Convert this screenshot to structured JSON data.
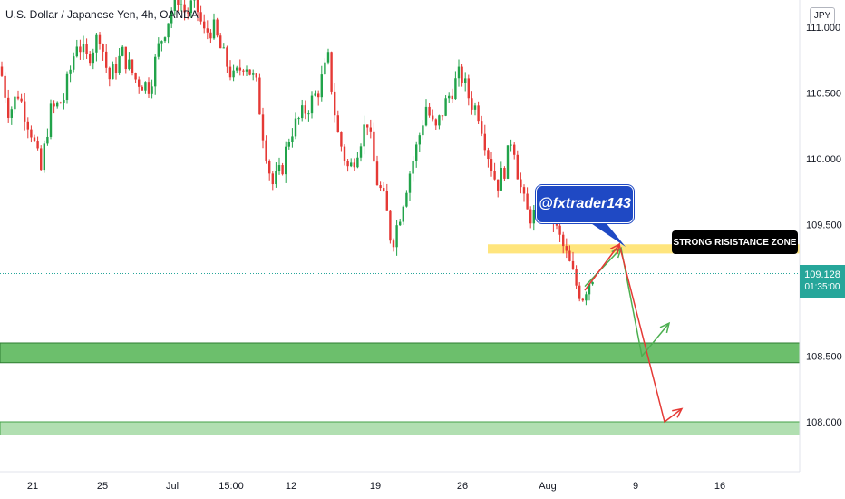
{
  "header": {
    "title": "U.S. Dollar / Japanese Yen, 4h, OANDA"
  },
  "currency_button": "JPY",
  "last_price": {
    "price": "109.128",
    "countdown": "01:35:00"
  },
  "annotations": {
    "callout": "@fxtrader143",
    "resistance_label": "STRONG RISISTANCE ZONE"
  },
  "colors": {
    "up": "#26a69a",
    "down": "#ef5350",
    "candle_up": "#21a34a",
    "candle_down": "#e53935",
    "resistance_zone": "#ffe066",
    "support_zone_1": "#5cb85c",
    "support_zone_2": "#a8dba8",
    "callout_bg": "#1f49c4",
    "arrow_green": "#4caf50",
    "arrow_red": "#e53935"
  },
  "chart_data": {
    "type": "candlestick",
    "y_axis": {
      "range": [
        107.6,
        111.2
      ],
      "ticks": [
        "111.000",
        "110.500",
        "110.000",
        "109.500",
        "109.128",
        "108.500",
        "108.000"
      ]
    },
    "x_axis": {
      "ticks": [
        "21",
        "25",
        "Jul",
        "15:00",
        "12",
        "19",
        "26",
        "Aug",
        "9",
        "16"
      ]
    },
    "zones": [
      {
        "kind": "resistance",
        "from": 109.28,
        "to": 109.35
      },
      {
        "kind": "support",
        "from": 108.45,
        "to": 108.6
      },
      {
        "kind": "support",
        "from": 107.9,
        "to": 108.0
      }
    ],
    "current_price": 109.128,
    "price_path": [
      [
        0,
        110.7
      ],
      [
        10,
        110.35
      ],
      [
        20,
        110.5
      ],
      [
        35,
        110.2
      ],
      [
        45,
        109.9
      ],
      [
        55,
        110.35
      ],
      [
        70,
        110.45
      ],
      [
        85,
        110.9
      ],
      [
        95,
        110.75
      ],
      [
        110,
        110.95
      ],
      [
        120,
        110.6
      ],
      [
        135,
        110.8
      ],
      [
        150,
        110.6
      ],
      [
        165,
        110.55
      ],
      [
        175,
        110.85
      ],
      [
        185,
        111.05
      ],
      [
        195,
        111.25
      ],
      [
        205,
        111.1
      ],
      [
        215,
        111.2
      ],
      [
        225,
        110.95
      ],
      [
        235,
        111.0
      ],
      [
        245,
        110.8
      ],
      [
        258,
        110.6
      ],
      [
        270,
        110.75
      ],
      [
        283,
        110.55
      ],
      [
        290,
        110.2
      ],
      [
        300,
        109.8
      ],
      [
        310,
        109.9
      ],
      [
        320,
        110.2
      ],
      [
        335,
        110.35
      ],
      [
        350,
        110.5
      ],
      [
        362,
        110.75
      ],
      [
        372,
        110.2
      ],
      [
        385,
        109.9
      ],
      [
        395,
        110.1
      ],
      [
        405,
        110.3
      ],
      [
        415,
        109.85
      ],
      [
        425,
        109.65
      ],
      [
        432,
        109.35
      ],
      [
        440,
        109.55
      ],
      [
        450,
        109.85
      ],
      [
        460,
        110.1
      ],
      [
        470,
        110.4
      ],
      [
        480,
        110.2
      ],
      [
        490,
        110.4
      ],
      [
        500,
        110.55
      ],
      [
        508,
        110.65
      ],
      [
        518,
        110.45
      ],
      [
        528,
        110.35
      ],
      [
        538,
        110.05
      ],
      [
        548,
        109.8
      ],
      [
        558,
        109.95
      ],
      [
        565,
        110.2
      ],
      [
        572,
        109.85
      ],
      [
        580,
        109.6
      ],
      [
        588,
        109.55
      ],
      [
        598,
        109.75
      ],
      [
        606,
        109.65
      ],
      [
        614,
        109.45
      ],
      [
        620,
        109.35
      ],
      [
        628,
        109.2
      ],
      [
        635,
        109.05
      ],
      [
        642,
        108.95
      ],
      [
        648,
        109.05
      ],
      [
        655,
        109.13
      ]
    ],
    "projection_paths": [
      {
        "color": "green",
        "points": [
          [
            645,
            109.03
          ],
          [
            685,
            109.32
          ],
          [
            708,
            108.5
          ],
          [
            738,
            108.75
          ]
        ]
      },
      {
        "color": "red",
        "points": [
          [
            645,
            109.0
          ],
          [
            683,
            109.35
          ],
          [
            733,
            108.0
          ],
          [
            752,
            108.1
          ]
        ]
      }
    ]
  }
}
